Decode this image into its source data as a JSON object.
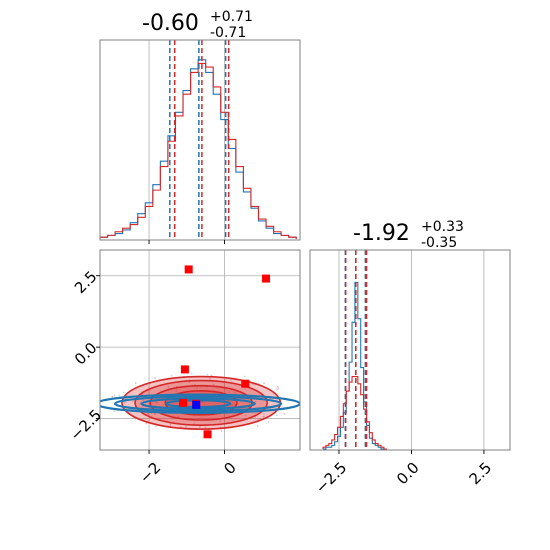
{
  "colors": {
    "blue": "#1f77b4",
    "red": "#d62728",
    "grid": "#b0b0b0",
    "frame": "#808080"
  },
  "chart_data": [
    {
      "type": "histogram",
      "panel": "top-left",
      "title": "-0.60",
      "title_sup": "+0.71",
      "title_sub": "-0.71",
      "xlim": [
        -3.3,
        2.0
      ],
      "x_ticks": [
        -2,
        0
      ],
      "x_tick_labels_shown": false,
      "y_ticks": [],
      "grid": true,
      "bin_centers": [
        -3.2,
        -3.0,
        -2.8,
        -2.6,
        -2.4,
        -2.2,
        -2.0,
        -1.8,
        -1.6,
        -1.4,
        -1.2,
        -1.0,
        -0.8,
        -0.6,
        -0.4,
        -0.2,
        0.0,
        0.2,
        0.4,
        0.6,
        0.8,
        1.0,
        1.2,
        1.4,
        1.6,
        1.8
      ],
      "series": [
        {
          "color": "blue",
          "values": [
            0.01,
            0.02,
            0.03,
            0.05,
            0.09,
            0.14,
            0.2,
            0.3,
            0.43,
            0.57,
            0.7,
            0.82,
            0.94,
            0.99,
            0.92,
            0.8,
            0.66,
            0.5,
            0.37,
            0.26,
            0.17,
            0.1,
            0.06,
            0.03,
            0.02,
            0.01
          ]
        },
        {
          "color": "red",
          "values": [
            0.01,
            0.02,
            0.04,
            0.06,
            0.08,
            0.12,
            0.18,
            0.27,
            0.4,
            0.54,
            0.68,
            0.8,
            0.92,
            0.97,
            0.95,
            0.84,
            0.7,
            0.55,
            0.4,
            0.28,
            0.18,
            0.11,
            0.07,
            0.04,
            0.02,
            0.01
          ]
        }
      ],
      "quantile_lines": [
        {
          "color": "blue",
          "values": [
            -1.45,
            -0.68,
            0.03
          ]
        },
        {
          "color": "red",
          "values": [
            -1.32,
            -0.6,
            0.11
          ]
        }
      ]
    },
    {
      "type": "histogram",
      "panel": "bottom-right",
      "title": "-1.92",
      "title_sup": "+0.33",
      "title_sub": "-0.35",
      "xlim": [
        -3.5,
        3.4
      ],
      "x_ticks": [
        -2.5,
        0.0,
        2.5
      ],
      "x_tick_labels": [
        "−2.5",
        "0.0",
        "2.5"
      ],
      "y_ticks": [],
      "grid": true,
      "bin_centers": [
        -3.0,
        -2.9,
        -2.8,
        -2.7,
        -2.6,
        -2.5,
        -2.4,
        -2.3,
        -2.2,
        -2.1,
        -2.0,
        -1.9,
        -1.8,
        -1.7,
        -1.6,
        -1.5,
        -1.4,
        -1.3,
        -1.2,
        -1.1,
        -1.0,
        -0.9
      ],
      "series": [
        {
          "color": "blue",
          "values": [
            0.0,
            0.01,
            0.01,
            0.02,
            0.04,
            0.07,
            0.12,
            0.2,
            0.32,
            0.48,
            0.7,
            0.92,
            0.72,
            0.45,
            0.26,
            0.13,
            0.06,
            0.03,
            0.02,
            0.01,
            0.0,
            0.0
          ]
        },
        {
          "color": "red",
          "values": [
            0.01,
            0.02,
            0.03,
            0.05,
            0.08,
            0.12,
            0.18,
            0.25,
            0.32,
            0.37,
            0.4,
            0.4,
            0.36,
            0.3,
            0.22,
            0.15,
            0.09,
            0.05,
            0.03,
            0.02,
            0.01,
            0.0
          ]
        }
      ],
      "quantile_lines": [
        {
          "color": "blue",
          "values": [
            -2.28,
            -1.92,
            -1.59
          ]
        },
        {
          "color": "red",
          "values": [
            -2.27,
            -1.92,
            -1.55
          ]
        }
      ]
    },
    {
      "type": "scatter",
      "panel": "bottom-left",
      "xlim": [
        -3.3,
        2.0
      ],
      "ylim": [
        -3.6,
        3.4
      ],
      "x_ticks": [
        -2,
        0
      ],
      "x_tick_labels": [
        "−2",
        "0"
      ],
      "y_ticks": [
        -2.5,
        0.0,
        2.5
      ],
      "y_tick_labels": [
        "−2.5",
        "0.0",
        "2.5"
      ],
      "grid": true,
      "contours": [
        {
          "color": "red",
          "filled": true,
          "center": [
            -0.62,
            -1.95
          ],
          "rx": [
            2.1,
            1.75,
            1.35,
            0.95
          ],
          "ry": [
            0.92,
            0.78,
            0.6,
            0.42
          ]
        },
        {
          "color": "blue",
          "filled": false,
          "center": [
            -0.7,
            -1.98
          ],
          "rx": [
            2.7,
            2.2,
            1.5,
            0.85
          ],
          "ry": [
            0.32,
            0.25,
            0.18,
            0.12
          ]
        }
      ],
      "points": [
        {
          "color": "red",
          "marker": "square",
          "x": [
            -0.95,
            1.1,
            -1.05,
            0.55,
            -1.1,
            -0.45,
            -0.75
          ],
          "y": [
            2.72,
            2.4,
            -0.78,
            -1.28,
            -1.95,
            -3.05,
            -1.98
          ]
        },
        {
          "color": "blue",
          "marker": "square",
          "x": [
            -0.75
          ],
          "y": [
            -2.02
          ]
        }
      ]
    }
  ]
}
